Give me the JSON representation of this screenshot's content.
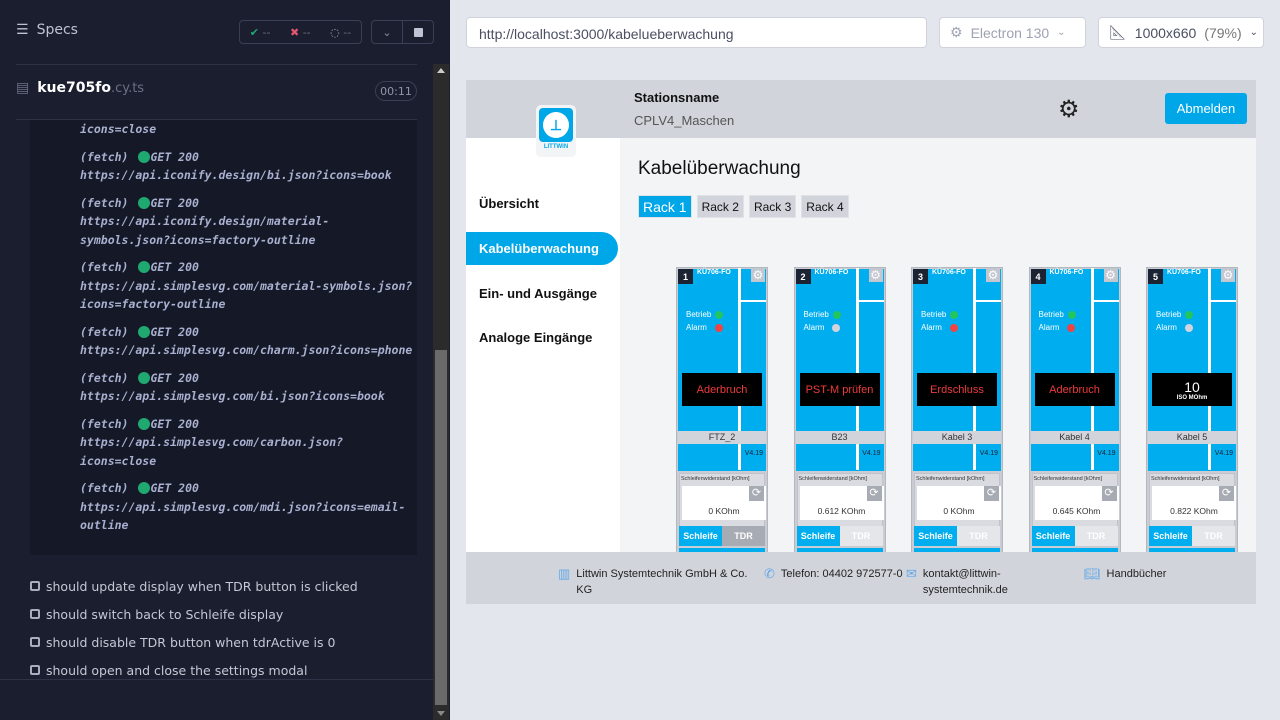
{
  "runner": {
    "specs_label": "Specs",
    "stats": {
      "passed": "--",
      "failed": "--",
      "pending": "--"
    },
    "spec_file": {
      "name": "kue705fo",
      "ext": ".cy.ts",
      "duration": "00:11"
    },
    "log_tail": "icons=close",
    "log": [
      {
        "type": "(fetch)",
        "status": "GET 200",
        "url": "https://api.iconify.design/bi.json?icons=book"
      },
      {
        "type": "(fetch)",
        "status": "GET 200",
        "url": "https://api.iconify.design/material-symbols.json?icons=factory-outline"
      },
      {
        "type": "(fetch)",
        "status": "GET 200",
        "url": "https://api.simplesvg.com/material-symbols.json?icons=factory-outline"
      },
      {
        "type": "(fetch)",
        "status": "GET 200",
        "url": "https://api.simplesvg.com/charm.json?icons=phone"
      },
      {
        "type": "(fetch)",
        "status": "GET 200",
        "url": "https://api.simplesvg.com/bi.json?icons=book"
      },
      {
        "type": "(fetch)",
        "status": "GET 200",
        "url": "https://api.simplesvg.com/carbon.json?icons=close"
      },
      {
        "type": "(fetch)",
        "status": "GET 200",
        "url": "https://api.simplesvg.com/mdi.json?icons=email-outline"
      }
    ],
    "tests": [
      "should update display when TDR button is clicked",
      "should switch back to Schleife display",
      "should disable TDR button when tdrActive is 0",
      "should open and close the settings modal"
    ]
  },
  "browser": {
    "url": "http://localhost:3000/kabelueberwachung",
    "engine": "Electron 130",
    "viewport": "1000x660",
    "zoom": "(79%)"
  },
  "app": {
    "logo_text": "LITTWIN",
    "station_label": "Stationsname",
    "station_value": "CPLV4_Maschen",
    "logout": "Abmelden",
    "nav": [
      "Übersicht",
      "Kabelüberwachung",
      "Ein- und Ausgänge",
      "Analoge Eingänge"
    ],
    "active_nav": 1,
    "page_title": "Kabelüberwachung",
    "racks": [
      "Rack 1",
      "Rack 2",
      "Rack 3",
      "Rack 4"
    ],
    "active_rack": 0,
    "colors": {
      "primary": "#00adef",
      "ok": "#22c55e",
      "alarm": "#ef4444",
      "off": "#d1d5db"
    },
    "cards": [
      {
        "num": "1",
        "title": "KÜ706-FO",
        "betrieb": "Betrieb",
        "alarm": "Alarm",
        "betrieb_on": true,
        "alarm_on": true,
        "display": "Aderbruch",
        "label": "FTZ_2",
        "version": "V4.19",
        "res_label": "Schleifenwiderstand [kOhm]",
        "res_value": "0 KOhm",
        "btn_schleife": "Schleife",
        "btn_tdr": "TDR",
        "tdr_disabled": false
      },
      {
        "num": "2",
        "title": "KÜ706-FO",
        "betrieb": "Betrieb",
        "alarm": "Alarm",
        "betrieb_on": true,
        "alarm_on": false,
        "display": "PST-M prüfen",
        "label": "B23",
        "version": "V4.19",
        "res_label": "Schleifenwiderstand [kOhm]",
        "res_value": "0.612 KOhm",
        "btn_schleife": "Schleife",
        "btn_tdr": "TDR",
        "tdr_disabled": true
      },
      {
        "num": "3",
        "title": "KÜ706-FO",
        "betrieb": "Betrieb",
        "alarm": "Alarm",
        "betrieb_on": true,
        "alarm_on": true,
        "display": "Erdschluss",
        "label": "Kabel 3",
        "version": "V4.19",
        "res_label": "Schleifenwiderstand [kOhm]",
        "res_value": "0 KOhm",
        "btn_schleife": "Schleife",
        "btn_tdr": "TDR",
        "tdr_disabled": true
      },
      {
        "num": "4",
        "title": "KÜ706-FO",
        "betrieb": "Betrieb",
        "alarm": "Alarm",
        "betrieb_on": true,
        "alarm_on": true,
        "display": "Aderbruch",
        "label": "Kabel 4",
        "version": "V4.19",
        "res_label": "Schleifenwiderstand [kOhm]",
        "res_value": "0.645 KOhm",
        "btn_schleife": "Schleife",
        "btn_tdr": "TDR",
        "tdr_disabled": true
      },
      {
        "num": "5",
        "title": "KÜ706-FO",
        "betrieb": "Betrieb",
        "alarm": "Alarm",
        "betrieb_on": true,
        "alarm_on": false,
        "display_value": "10",
        "display_unit": "ISO MOhm",
        "label": "Kabel 5",
        "version": "V4.19",
        "res_label": "Schleifenwiderstand [kOhm]",
        "res_value": "0.822 KOhm",
        "btn_schleife": "Schleife",
        "btn_tdr": "TDR",
        "tdr_disabled": true
      }
    ],
    "footer": {
      "company": "Littwin Systemtechnik GmbH & Co. KG",
      "phone": "Telefon: 04402 972577-0",
      "email": "kontakt@littwin-systemtechnik.de",
      "manuals": "Handbücher"
    }
  }
}
